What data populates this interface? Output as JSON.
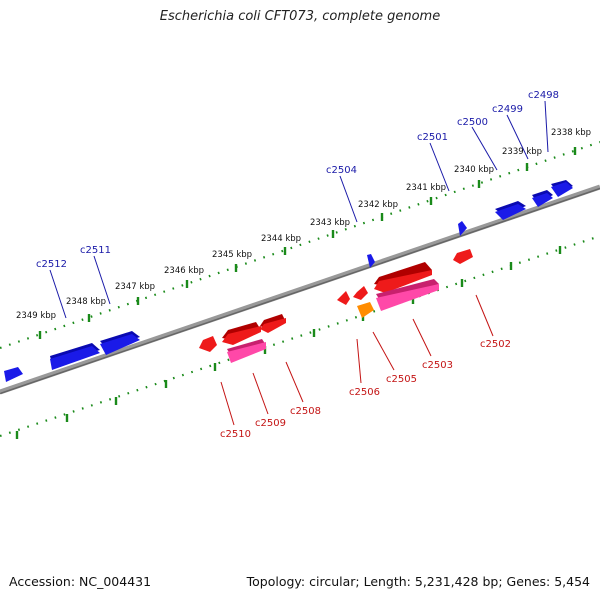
{
  "title": "Escherichia coli CFT073, complete genome",
  "footer": {
    "accession": "Accession: NC_004431",
    "summary": "Topology: circular; Length: 5,231,428 bp; Genes: 5,454"
  },
  "colors": {
    "forward_gene": "#1515e6",
    "reverse_gene": "#e61515",
    "reverse_gene_alt": "#ff40a0",
    "reverse_gene_small": "#ff8c00",
    "backbone": "#888888",
    "tick": "#1a8a1a",
    "forward_label": "#1a1aa8",
    "reverse_label": "#c41414"
  },
  "scale": {
    "unit": "kbp",
    "labels": [
      "2338 kbp",
      "2339 kbp",
      "2340 kbp",
      "2341 kbp",
      "2342 kbp",
      "2343 kbp",
      "2344 kbp",
      "2345 kbp",
      "2346 kbp",
      "2347 kbp",
      "2348 kbp",
      "2349 kbp"
    ]
  },
  "forward_genes": [
    "c2498",
    "c2499",
    "c2500",
    "c2501",
    "c2504",
    "c2511",
    "c2512"
  ],
  "reverse_genes": [
    "c2502",
    "c2503",
    "c2505",
    "c2506",
    "c2508",
    "c2509",
    "c2510"
  ]
}
